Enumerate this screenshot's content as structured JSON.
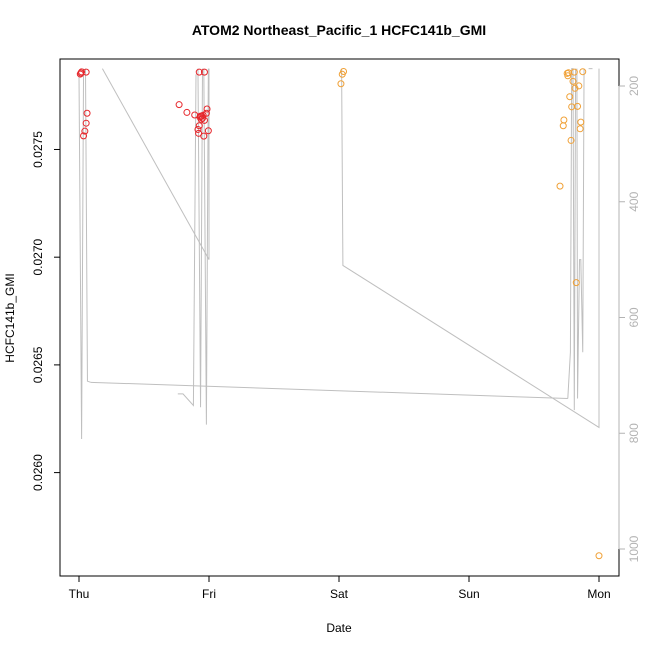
{
  "chart_data": {
    "type": "scatter",
    "title": "ATOM2 Northeast_Pacific_1 HCFC141b_GMI",
    "xlabel": "Date",
    "ylabel": "HCFC141b_GMI",
    "x_ticks": [
      "Thu",
      "Fri",
      "Sat",
      "Sun",
      "Mon"
    ],
    "xlim": [
      0,
      4.15
    ],
    "ylim": [
      0.02552,
      0.02792
    ],
    "y_ticks": [
      "0.0260",
      "0.0265",
      "0.0270",
      "0.0275"
    ],
    "y_tick_values": [
      0.026,
      0.0265,
      0.027,
      0.0275
    ],
    "y2_ticks": [
      "200",
      "400",
      "600",
      "800",
      "1000"
    ],
    "y2_tick_values": [
      200,
      400,
      600,
      800,
      1000
    ],
    "y2lim": [
      1045,
      170
    ],
    "grid": false,
    "legend": "none",
    "colors": {
      "series_1": "#e6262b",
      "series_2": "#f0a035",
      "pressure_line": "#bfbfbf",
      "axis": "#000000",
      "y2_axis": "#b3b3b3"
    },
    "series": [
      {
        "color": "#e6262b",
        "points": [
          {
            "x": 0.01,
            "y": 0.02785
          },
          {
            "x": 0.015,
            "y": 0.027855
          },
          {
            "x": 0.02,
            "y": 0.02786
          },
          {
            "x": 0.035,
            "y": 0.027563
          },
          {
            "x": 0.045,
            "y": 0.027585
          },
          {
            "x": 0.055,
            "y": 0.027622
          },
          {
            "x": 0.062,
            "y": 0.027668
          },
          {
            "x": 0.055,
            "y": 0.027859
          },
          {
            "x": 0.77,
            "y": 0.027708
          },
          {
            "x": 0.83,
            "y": 0.027672
          },
          {
            "x": 0.89,
            "y": 0.02766
          },
          {
            "x": 0.915,
            "y": 0.027593
          },
          {
            "x": 0.92,
            "y": 0.027575
          },
          {
            "x": 0.925,
            "y": 0.02761
          },
          {
            "x": 0.93,
            "y": 0.02765
          },
          {
            "x": 0.935,
            "y": 0.027655
          },
          {
            "x": 0.94,
            "y": 0.02764
          },
          {
            "x": 0.945,
            "y": 0.027655
          },
          {
            "x": 0.95,
            "y": 0.027645
          },
          {
            "x": 0.955,
            "y": 0.027659
          },
          {
            "x": 0.965,
            "y": 0.027635
          },
          {
            "x": 0.96,
            "y": 0.027562
          },
          {
            "x": 0.98,
            "y": 0.027668
          },
          {
            "x": 0.985,
            "y": 0.027688
          },
          {
            "x": 0.995,
            "y": 0.027587
          },
          {
            "x": 0.925,
            "y": 0.027859
          },
          {
            "x": 0.965,
            "y": 0.027859
          }
        ]
      },
      {
        "color": "#f0a035",
        "points": [
          {
            "x": 2.015,
            "y": 0.027805
          },
          {
            "x": 2.025,
            "y": 0.027849
          },
          {
            "x": 2.035,
            "y": 0.027862
          },
          {
            "x": 3.7,
            "y": 0.02733
          },
          {
            "x": 3.725,
            "y": 0.02761
          },
          {
            "x": 3.73,
            "y": 0.027637
          },
          {
            "x": 3.755,
            "y": 0.027853
          },
          {
            "x": 3.76,
            "y": 0.027842
          },
          {
            "x": 3.765,
            "y": 0.027856
          },
          {
            "x": 3.775,
            "y": 0.027745
          },
          {
            "x": 3.785,
            "y": 0.027542
          },
          {
            "x": 3.79,
            "y": 0.027698
          },
          {
            "x": 3.8,
            "y": 0.027816
          },
          {
            "x": 3.81,
            "y": 0.027859
          },
          {
            "x": 3.815,
            "y": 0.027784
          },
          {
            "x": 3.825,
            "y": 0.026882
          },
          {
            "x": 3.835,
            "y": 0.0277
          },
          {
            "x": 3.845,
            "y": 0.027795
          },
          {
            "x": 3.855,
            "y": 0.027596
          },
          {
            "x": 3.86,
            "y": 0.027627
          },
          {
            "x": 3.875,
            "y": 0.027861
          },
          {
            "x": 4.0,
            "y": 0.025614
          }
        ]
      }
    ],
    "pressure_trace": [
      [
        0.0,
        170
      ],
      [
        0.01,
        170
      ],
      [
        0.02,
        810
      ],
      [
        0.03,
        190
      ],
      [
        0.04,
        170
      ],
      [
        0.055,
        170
      ],
      [
        0.07,
        710
      ],
      [
        0.09,
        718
      ],
      [
        0.18,
        170
      ],
      [
        0.15,
        170
      ],
      [
        0.8,
        730
      ],
      [
        0.9,
        750
      ],
      [
        0.9,
        720
      ],
      [
        0.92,
        170
      ],
      [
        0.93,
        170
      ],
      [
        0.94,
        770
      ],
      [
        0.95,
        170
      ],
      [
        0.96,
        170
      ],
      [
        0.975,
        700
      ],
      [
        0.99,
        170
      ],
      [
        1.0,
        170
      ],
      [
        1.0,
        800
      ],
      [
        1.0,
        500
      ],
      [
        0.33,
        170
      ],
      [
        0.0,
        170
      ],
      [
        1.0,
        500
      ],
      [
        2.0,
        170
      ],
      [
        2.02,
        170
      ],
      [
        2.03,
        510
      ],
      [
        3.78,
        740
      ],
      [
        3.8,
        760
      ],
      [
        3.8,
        170
      ],
      [
        3.81,
        170
      ],
      [
        3.83,
        730
      ],
      [
        3.86,
        510
      ],
      [
        3.87,
        650
      ],
      [
        3.9,
        170
      ],
      [
        3.93,
        170
      ],
      [
        4.0,
        790
      ],
      [
        4.0,
        170
      ]
    ],
    "pressure_segments": [
      [
        [
          0.0,
          180
        ],
        [
          0.02,
          810
        ],
        [
          0.035,
          170
        ]
      ],
      [
        [
          0.05,
          170
        ],
        [
          0.065,
          710
        ],
        [
          0.09,
          712
        ]
      ],
      [
        [
          0.09,
          712
        ],
        [
          3.76,
          740
        ]
      ],
      [
        [
          0.18,
          170
        ],
        [
          1.0,
          500
        ]
      ],
      [
        [
          0.76,
          732
        ],
        [
          0.8,
          732
        ],
        [
          0.88,
          752
        ],
        [
          0.9,
          180
        ]
      ],
      [
        [
          0.915,
          170
        ],
        [
          0.935,
          755
        ],
        [
          0.95,
          170
        ]
      ],
      [
        [
          0.96,
          170
        ],
        [
          0.98,
          785
        ],
        [
          0.995,
          170
        ]
      ],
      [
        [
          1.0,
          170
        ],
        [
          1.0,
          500
        ]
      ],
      [
        [
          2.02,
          170
        ],
        [
          2.03,
          510
        ],
        [
          4.0,
          790
        ],
        [
          4.0,
          170
        ]
      ],
      [
        [
          3.76,
          740
        ],
        [
          3.78,
          660
        ],
        [
          3.79,
          170
        ],
        [
          3.8,
          170
        ],
        [
          3.81,
          760
        ],
        [
          3.82,
          170
        ]
      ],
      [
        [
          3.83,
          170
        ],
        [
          3.835,
          740
        ],
        [
          3.85,
          500
        ],
        [
          3.86,
          500
        ],
        [
          3.875,
          660
        ],
        [
          3.885,
          170
        ]
      ],
      [
        [
          3.92,
          170
        ],
        [
          3.95,
          170
        ]
      ]
    ]
  }
}
